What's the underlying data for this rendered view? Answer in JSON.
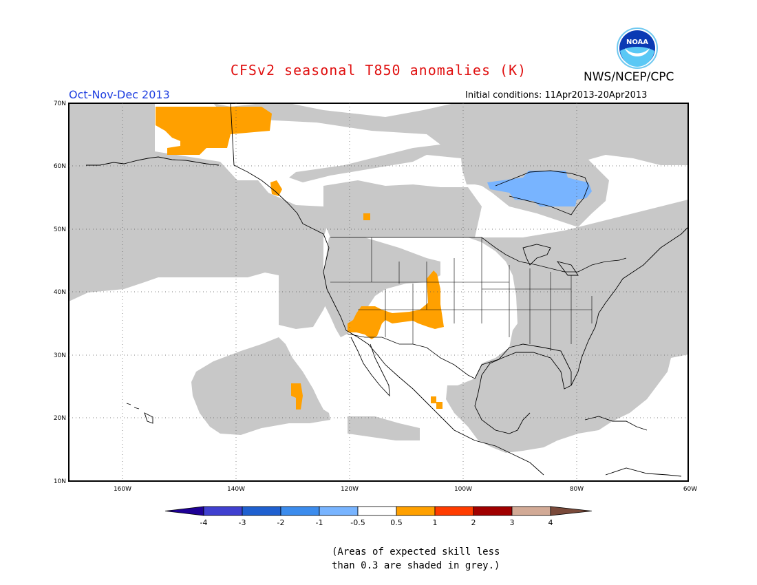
{
  "header": {
    "title": "CFSv2 seasonal T850 anomalies (K)",
    "organization": "NWS/NCEP/CPC",
    "period": "Oct-Nov-Dec 2013",
    "initial_conditions": "Initial conditions: 11Apr2013-20Apr2013",
    "logo_text": "NOAA"
  },
  "map": {
    "lat_labels": [
      "70N",
      "60N",
      "50N",
      "40N",
      "30N",
      "20N",
      "10N"
    ],
    "lon_labels": [
      "160W",
      "140W",
      "120W",
      "100W",
      "80W",
      "60W"
    ],
    "colors": {
      "grey_low_skill": "#c8c8c8",
      "anom_pos_0_5_1": "#ffa000",
      "anom_neg_0_5_1": "#78b4ff",
      "coast": "#000000"
    }
  },
  "colorbar": {
    "labels": [
      "-4",
      "-3",
      "-2",
      "-1",
      "-0.5",
      "0.5",
      "1",
      "2",
      "3",
      "4"
    ],
    "colors": [
      "#1e0096",
      "#4040d0",
      "#1f60d0",
      "#3c8ced",
      "#78b4ff",
      "#ffffff",
      "#ffa000",
      "#ff3c00",
      "#a00000",
      "#d2aa96",
      "#7a4a3a"
    ]
  },
  "footnote": {
    "line1": "(Areas of expected skill less",
    "line2": "than 0.3 are shaded in grey.)"
  }
}
